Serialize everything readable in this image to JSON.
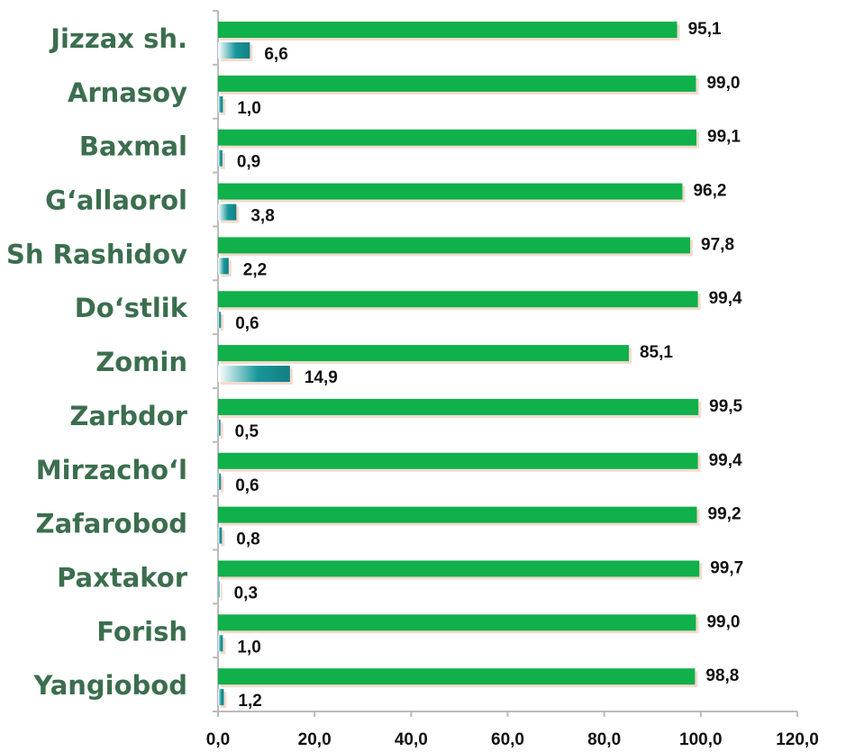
{
  "chart_data": {
    "type": "bar",
    "orientation": "horizontal",
    "categories": [
      "Jizzax sh.",
      "Arnasoy",
      "Baxmal",
      "G‘allaorol",
      "Sh Rashidov",
      "Do‘stlik",
      "Zomin",
      "Zarbdor",
      "Mirzacho‘l",
      "Zafarobod",
      "Paxtakor",
      "Forish",
      "Yangiobod"
    ],
    "series": [
      {
        "color": "#10b04a",
        "values": [
          95.1,
          99.0,
          99.1,
          96.2,
          97.8,
          99.4,
          85.1,
          99.5,
          99.4,
          99.2,
          99.7,
          99.0,
          98.8
        ],
        "value_labels": [
          "95,1",
          "99,0",
          "99,1",
          "96,2",
          "97,8",
          "99,4",
          "85,1",
          "99,5",
          "99,4",
          "99,2",
          "99,7",
          "99,0",
          "98,8"
        ]
      },
      {
        "color": "#17979b",
        "values": [
          6.6,
          1.0,
          0.9,
          3.8,
          2.2,
          0.6,
          14.9,
          0.5,
          0.6,
          0.8,
          0.3,
          1.0,
          1.2
        ],
        "value_labels": [
          "6,6",
          "1,0",
          "0,9",
          "3,8",
          "2,2",
          "0,6",
          "14,9",
          "0,5",
          "0,6",
          "0,8",
          "0,3",
          "1,0",
          "1,2"
        ]
      }
    ],
    "xlim": [
      0,
      120
    ],
    "xticks": [
      {
        "value": 0,
        "label": "0,0"
      },
      {
        "value": 20,
        "label": "20,0"
      },
      {
        "value": 40,
        "label": "40,0"
      },
      {
        "value": 60,
        "label": "60,0"
      },
      {
        "value": 80,
        "label": "80,0"
      },
      {
        "value": 100,
        "label": "100,0"
      },
      {
        "value": 120,
        "label": "120,0"
      }
    ]
  }
}
